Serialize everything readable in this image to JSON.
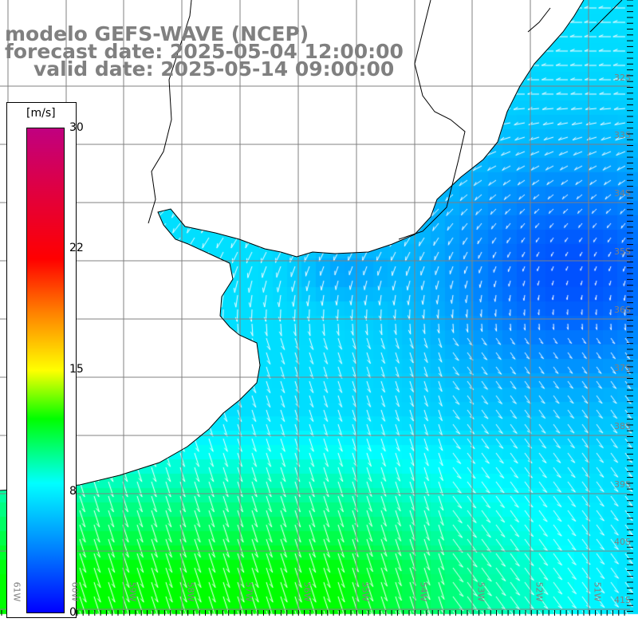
{
  "title": {
    "line1": "modelo GEFS-WAVE (NCEP)",
    "line2": "forecast date: 2025-05-04 12:00:00",
    "line3": "valid date: 2025-05-14 09:00:00"
  },
  "colorbar": {
    "unit": "[m/s]",
    "ticks": [
      "30",
      "22",
      "15",
      "8",
      "0"
    ]
  },
  "lat_labels": [
    "32S",
    "33S",
    "34S",
    "35S",
    "36S",
    "37S",
    "38S",
    "39S",
    "40S",
    "41S"
  ],
  "lon_labels": [
    "61W",
    "60W",
    "59W",
    "58W",
    "57W",
    "56W",
    "55W",
    "54W",
    "53W",
    "52W",
    "51W"
  ],
  "colors": {
    "land": "#ffffff",
    "grid": "#808080",
    "arrow": "#ffffff"
  }
}
